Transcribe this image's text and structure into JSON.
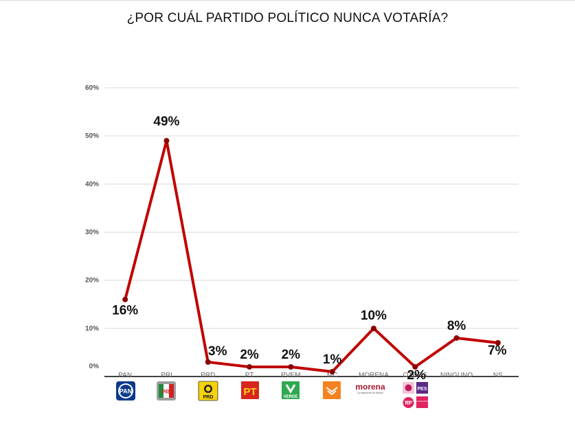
{
  "chart_data": {
    "type": "line",
    "title": "¿POR CUÁL PARTIDO POLÍTICO NUNCA VOTARÍA?",
    "categories": [
      "PAN",
      "PRI",
      "PRD",
      "PT",
      "PVEM",
      "MC",
      "MORENA",
      "OTROS",
      "NINGUNO",
      "NS"
    ],
    "series": [
      {
        "values": [
          16,
          49,
          3,
          2,
          2,
          1,
          10,
          2,
          8,
          7
        ],
        "labels": [
          "16%",
          "49%",
          "3%",
          "2%",
          "2%",
          "1%",
          "10%",
          "2%",
          "8%",
          "7%"
        ],
        "color": "#c00000"
      }
    ],
    "ylim": [
      0,
      60
    ],
    "yticks": [
      {
        "value": 0,
        "label": "0%"
      },
      {
        "value": 10,
        "label": "10%"
      },
      {
        "value": 20,
        "label": "20%"
      },
      {
        "value": 30,
        "label": "30%"
      },
      {
        "value": 40,
        "label": "40%"
      },
      {
        "value": 50,
        "label": "50%"
      },
      {
        "value": 60,
        "label": "60%"
      }
    ],
    "grid": true,
    "legend": "none"
  },
  "logos": {
    "pan": "PAN",
    "pri": "PRI",
    "prd": "PRD",
    "pt": "PT",
    "pvem": "VERDE",
    "morena": "morena",
    "morena_sub": "La esperanza de México",
    "pes": "PES",
    "rp": "RP",
    "rp_side": "REDES SOCIALES PROGRESISTAS"
  },
  "colors": {
    "line": "#c00000",
    "marker": "#8b0000",
    "grid": "#d9d9d9",
    "axis": "#000000"
  }
}
